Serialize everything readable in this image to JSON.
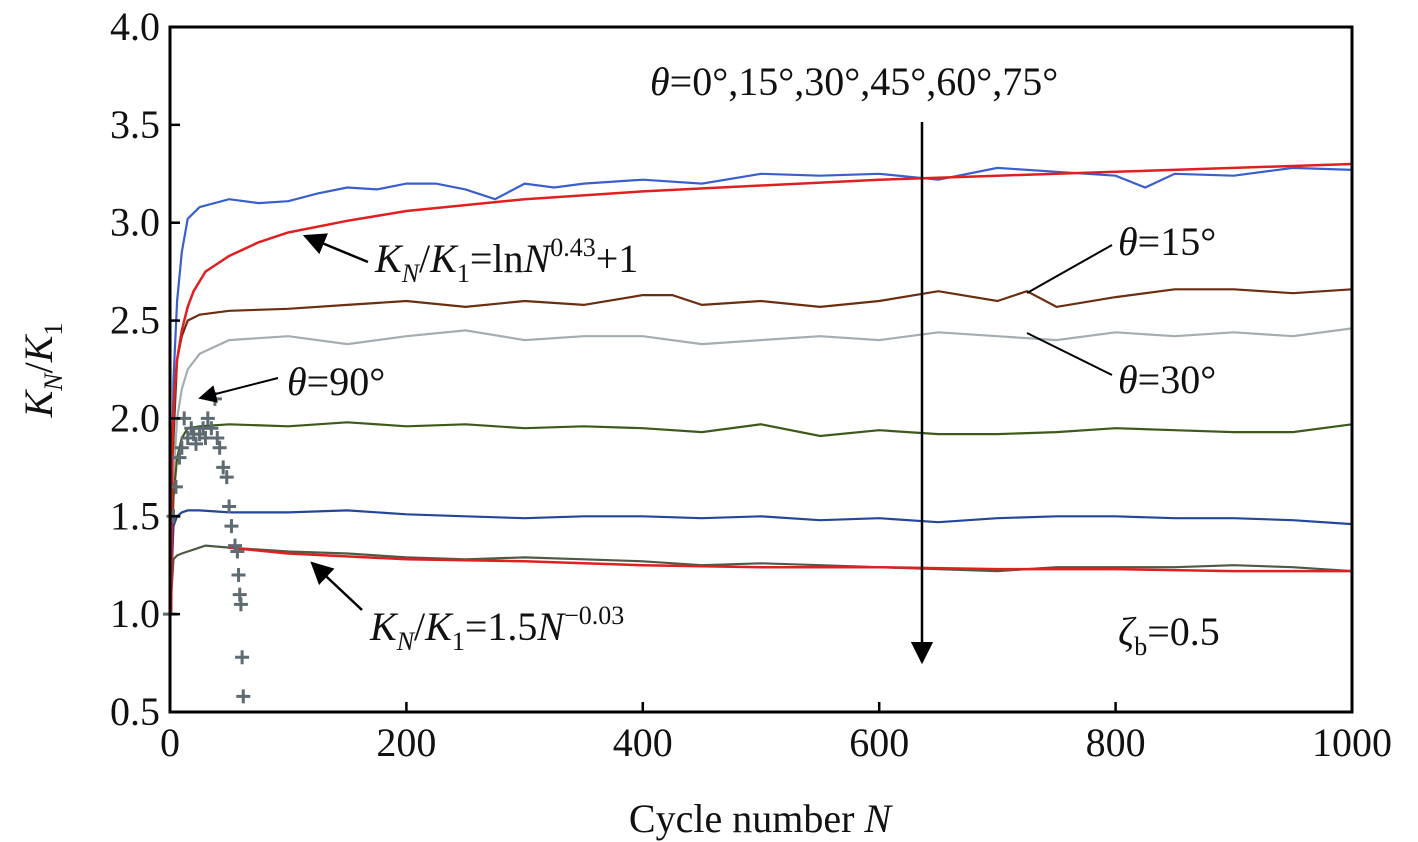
{
  "chart_data": {
    "type": "line",
    "xlabel": "Cycle number",
    "xlabel_var": "N",
    "ylabel_k": "K",
    "ylabel_sub_n": "N",
    "ylabel_slash": "/",
    "ylabel_sub_1": "1",
    "xlim": [
      0,
      1000
    ],
    "ylim": [
      0.5,
      4.0
    ],
    "xticks": [
      "0",
      "200",
      "400",
      "600",
      "800",
      "1000"
    ],
    "yticks": [
      "0.5",
      "1.0",
      "1.5",
      "2.0",
      "2.5",
      "3.0",
      "3.5",
      "4.0"
    ],
    "grid": false,
    "series": [
      {
        "name": "θ=0°",
        "color": "#3a5fcd",
        "x": [
          0,
          3,
          6,
          10,
          15,
          25,
          50,
          75,
          100,
          125,
          150,
          175,
          200,
          225,
          250,
          275,
          300,
          325,
          350,
          400,
          450,
          500,
          550,
          600,
          650,
          700,
          750,
          800,
          825,
          850,
          900,
          950,
          1000
        ],
        "y": [
          1.0,
          2.2,
          2.6,
          2.85,
          3.02,
          3.08,
          3.12,
          3.1,
          3.11,
          3.15,
          3.18,
          3.17,
          3.2,
          3.2,
          3.17,
          3.12,
          3.2,
          3.18,
          3.2,
          3.22,
          3.2,
          3.25,
          3.24,
          3.25,
          3.22,
          3.28,
          3.26,
          3.24,
          3.18,
          3.25,
          3.24,
          3.28,
          3.27
        ]
      },
      {
        "name": "θ=15°",
        "color": "#6b2e10",
        "x": [
          0,
          3,
          6,
          10,
          15,
          25,
          50,
          100,
          150,
          200,
          250,
          300,
          350,
          400,
          425,
          450,
          500,
          550,
          600,
          650,
          700,
          725,
          750,
          800,
          850,
          900,
          950,
          1000
        ],
        "y": [
          1.0,
          1.9,
          2.3,
          2.42,
          2.5,
          2.53,
          2.55,
          2.56,
          2.58,
          2.6,
          2.57,
          2.6,
          2.58,
          2.63,
          2.63,
          2.58,
          2.6,
          2.57,
          2.6,
          2.65,
          2.6,
          2.65,
          2.57,
          2.62,
          2.66,
          2.66,
          2.64,
          2.66
        ]
      },
      {
        "name": "θ=30°",
        "color": "#a4adb0",
        "x": [
          0,
          3,
          6,
          10,
          15,
          25,
          50,
          100,
          150,
          200,
          250,
          300,
          350,
          400,
          450,
          500,
          550,
          600,
          650,
          700,
          750,
          800,
          850,
          900,
          950,
          1000
        ],
        "y": [
          1.0,
          1.7,
          2.0,
          2.15,
          2.25,
          2.33,
          2.4,
          2.42,
          2.38,
          2.42,
          2.45,
          2.4,
          2.42,
          2.42,
          2.38,
          2.4,
          2.42,
          2.4,
          2.44,
          2.42,
          2.4,
          2.44,
          2.42,
          2.44,
          2.42,
          2.46
        ]
      },
      {
        "name": "θ=45°",
        "color": "#3d5a1a",
        "x": [
          0,
          3,
          6,
          10,
          15,
          25,
          50,
          100,
          150,
          200,
          250,
          300,
          350,
          400,
          450,
          500,
          550,
          600,
          650,
          700,
          750,
          800,
          850,
          900,
          950,
          1000
        ],
        "y": [
          1.0,
          1.6,
          1.8,
          1.9,
          1.95,
          1.96,
          1.97,
          1.96,
          1.98,
          1.96,
          1.97,
          1.95,
          1.96,
          1.95,
          1.93,
          1.97,
          1.91,
          1.94,
          1.92,
          1.92,
          1.93,
          1.95,
          1.94,
          1.93,
          1.93,
          1.97
        ]
      },
      {
        "name": "θ=60°",
        "color": "#23479a",
        "x": [
          0,
          3,
          6,
          10,
          15,
          25,
          50,
          100,
          150,
          200,
          250,
          300,
          350,
          400,
          450,
          500,
          550,
          600,
          650,
          700,
          750,
          800,
          850,
          900,
          950,
          1000
        ],
        "y": [
          1.0,
          1.45,
          1.5,
          1.52,
          1.53,
          1.53,
          1.52,
          1.52,
          1.53,
          1.51,
          1.5,
          1.49,
          1.5,
          1.5,
          1.49,
          1.5,
          1.48,
          1.49,
          1.47,
          1.49,
          1.5,
          1.5,
          1.49,
          1.49,
          1.48,
          1.46
        ]
      },
      {
        "name": "θ=75°",
        "color": "#4d5a45",
        "x": [
          0,
          3,
          6,
          10,
          20,
          30,
          50,
          100,
          150,
          200,
          250,
          300,
          350,
          400,
          450,
          500,
          550,
          600,
          650,
          700,
          750,
          800,
          850,
          900,
          950,
          1000
        ],
        "y": [
          1.0,
          1.28,
          1.3,
          1.31,
          1.33,
          1.35,
          1.34,
          1.32,
          1.31,
          1.29,
          1.28,
          1.29,
          1.28,
          1.27,
          1.25,
          1.26,
          1.25,
          1.24,
          1.23,
          1.22,
          1.24,
          1.24,
          1.24,
          1.25,
          1.24,
          1.22
        ]
      },
      {
        "name": "Fit K_N/K_1=lnN^0.43+1",
        "color": "#e02020",
        "x": [
          1,
          2,
          4,
          6,
          10,
          15,
          20,
          30,
          50,
          75,
          100,
          150,
          200,
          300,
          400,
          500,
          600,
          700,
          800,
          900,
          1000
        ],
        "y": [
          1.0,
          1.9,
          2.15,
          2.3,
          2.45,
          2.57,
          2.65,
          2.75,
          2.83,
          2.9,
          2.95,
          3.01,
          3.06,
          3.12,
          3.16,
          3.19,
          3.22,
          3.24,
          3.26,
          3.28,
          3.3
        ]
      },
      {
        "name": "Fit K_N/K_1=1.5N^-0.03",
        "color": "#e02020",
        "x": [
          50,
          100,
          200,
          300,
          400,
          500,
          600,
          700,
          800,
          900,
          1000
        ],
        "y": [
          1.34,
          1.31,
          1.28,
          1.27,
          1.25,
          1.24,
          1.24,
          1.23,
          1.23,
          1.22,
          1.22
        ]
      }
    ],
    "scatter": {
      "name": "θ=90°",
      "color": "#5f6b72",
      "x": [
        0,
        3,
        5,
        8,
        10,
        12,
        15,
        18,
        20,
        22,
        25,
        28,
        30,
        32,
        35,
        38,
        40,
        42,
        45,
        48,
        50,
        52,
        55,
        57,
        58,
        59,
        60,
        61,
        62
      ],
      "y": [
        1.0,
        1.5,
        1.65,
        1.8,
        1.85,
        2.0,
        1.9,
        1.95,
        1.92,
        1.87,
        1.92,
        1.95,
        1.9,
        2.0,
        1.95,
        2.1,
        1.9,
        1.85,
        1.75,
        1.7,
        1.55,
        1.45,
        1.35,
        1.32,
        1.2,
        1.1,
        1.05,
        0.78,
        0.58
      ]
    },
    "annotations": {
      "theta_list": "=0°,15°,30°,45°,60°,75°",
      "theta": "θ",
      "theta15": "=15°",
      "theta30": "=30°",
      "theta90": "=90°",
      "fit1_k": "K",
      "fit1_n": "N",
      "fit1_slash": "/",
      "fit1_k1": "K",
      "fit1_1": "1",
      "fit1_rhs": "=ln",
      "fit1_N": "N",
      "fit1_exp": "0.43",
      "fit1_tail": "+1",
      "fit2_rhs": "=1.5",
      "fit2_exp": "−0.03",
      "zeta": "ζ",
      "zeta_sub": "b",
      "zeta_val": "=0.5"
    }
  }
}
